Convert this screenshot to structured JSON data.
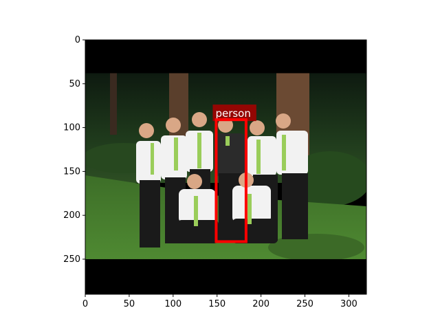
{
  "image": {
    "width_units": 320,
    "height_units": 290,
    "letterbox_top_end": 38,
    "letterbox_bottom_start": 250,
    "letterbox_color": "#000000"
  },
  "axes": {
    "x_ticks": [
      0,
      50,
      100,
      150,
      200,
      250,
      300
    ],
    "y_ticks": [
      0,
      50,
      100,
      150,
      200,
      250
    ],
    "xlim": [
      0,
      320
    ],
    "ylim": [
      290,
      0
    ]
  },
  "detection": {
    "label": "person",
    "box": {
      "x0": 149,
      "y0": 91,
      "x1": 183,
      "y1": 230
    },
    "box_color": "#ff0000",
    "label_bg_color": "#aa0000"
  },
  "scene": {
    "description_colors": {
      "grass": "#3f7a2a",
      "trees": "#1f3a1c",
      "shirt": "#f2f2f2",
      "tie": "#9acd5a",
      "pants": "#1a1a1a",
      "skin": "#d9a786"
    }
  }
}
